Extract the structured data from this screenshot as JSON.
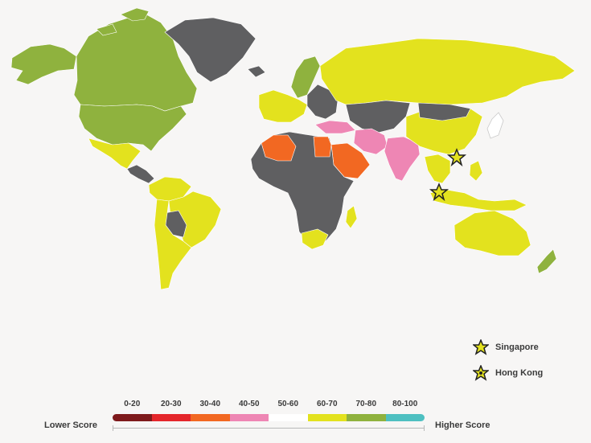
{
  "colors": {
    "background": "#f7f6f5",
    "no_data": "#5f5f61",
    "ocean_border": "#ffffff"
  },
  "legend": {
    "lower_label": "Lower Score",
    "higher_label": "Higher Score",
    "bins": [
      {
        "label": "0-20",
        "color": "#7e1a1c"
      },
      {
        "label": "20-30",
        "color": "#e4262b"
      },
      {
        "label": "30-40",
        "color": "#f26822"
      },
      {
        "label": "40-50",
        "color": "#ee86b4"
      },
      {
        "label": "50-60",
        "color": "#ffffff"
      },
      {
        "label": "60-70",
        "color": "#e3e21e"
      },
      {
        "label": "70-80",
        "color": "#8fb23e"
      },
      {
        "label": "80-100",
        "color": "#4ec0c1"
      }
    ]
  },
  "markers": [
    {
      "label": "Singapore",
      "icon": "star-icon"
    },
    {
      "label": "Hong Kong",
      "icon": "star-burst-icon"
    }
  ],
  "regions": [
    {
      "name": "Canada",
      "score_bin": "70-80"
    },
    {
      "name": "United States",
      "score_bin": "70-80"
    },
    {
      "name": "Alaska",
      "score_bin": "70-80"
    },
    {
      "name": "Greenland",
      "score_bin": "no-data"
    },
    {
      "name": "Mexico",
      "score_bin": "60-70"
    },
    {
      "name": "Central America",
      "score_bin": "no-data"
    },
    {
      "name": "Colombia / Venezuela",
      "score_bin": "60-70"
    },
    {
      "name": "Brazil",
      "score_bin": "60-70"
    },
    {
      "name": "Bolivia",
      "score_bin": "no-data"
    },
    {
      "name": "Chile / Argentina",
      "score_bin": "60-70"
    },
    {
      "name": "Iceland",
      "score_bin": "no-data"
    },
    {
      "name": "Scandinavia",
      "score_bin": "70-80"
    },
    {
      "name": "Western Europe",
      "score_bin": "60-70"
    },
    {
      "name": "Eastern Europe",
      "score_bin": "no-data"
    },
    {
      "name": "Russia",
      "score_bin": "60-70"
    },
    {
      "name": "Kazakhstan / Central Asia",
      "score_bin": "no-data"
    },
    {
      "name": "Turkey",
      "score_bin": "40-50"
    },
    {
      "name": "Iran",
      "score_bin": "40-50"
    },
    {
      "name": "Algeria",
      "score_bin": "30-40"
    },
    {
      "name": "Egypt",
      "score_bin": "30-40"
    },
    {
      "name": "Saudi Arabia",
      "score_bin": "30-40"
    },
    {
      "name": "Africa",
      "score_bin": "no-data"
    },
    {
      "name": "South Africa",
      "score_bin": "60-70"
    },
    {
      "name": "India",
      "score_bin": "40-50"
    },
    {
      "name": "China",
      "score_bin": "60-70"
    },
    {
      "name": "Mongolia",
      "score_bin": "no-data"
    },
    {
      "name": "Southeast Asia",
      "score_bin": "60-70"
    },
    {
      "name": "Indonesia",
      "score_bin": "60-70"
    },
    {
      "name": "Japan",
      "score_bin": "50-60"
    },
    {
      "name": "Australia",
      "score_bin": "60-70"
    },
    {
      "name": "New Zealand",
      "score_bin": "70-80"
    }
  ]
}
